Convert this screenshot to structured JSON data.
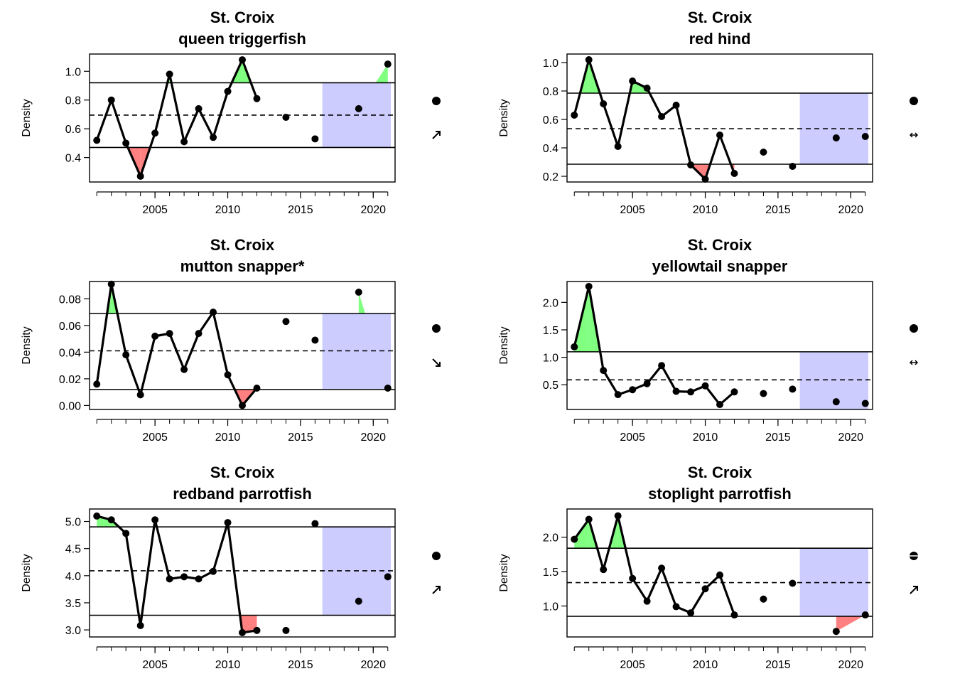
{
  "chart_data": [
    {
      "type": "line",
      "title": "St. Croix",
      "subtitle": "queen triggerfish",
      "ylabel": "Density",
      "xlabel": "",
      "xticks": [
        2005,
        2010,
        2015,
        2020
      ],
      "yticks": [
        0.4,
        0.6,
        0.8,
        1.0
      ],
      "ytick_labels": [
        "0.4",
        "0.6",
        "0.8",
        "1.0"
      ],
      "xlim": [
        2000.5,
        2021.5
      ],
      "ylim": [
        0.23,
        1.12
      ],
      "mean": 0.695,
      "upper": 0.92,
      "lower": 0.47,
      "shade_from": 2016.5,
      "series": [
        {
          "x": [
            2001,
            2002,
            2003,
            2004,
            2005,
            2006,
            2007,
            2008,
            2009,
            2010,
            2011,
            2012,
            2014,
            2016,
            2019,
            2021
          ],
          "values": [
            0.52,
            0.8,
            0.5,
            0.27,
            0.57,
            0.98,
            0.51,
            0.74,
            0.54,
            0.86,
            1.08,
            0.81,
            0.68,
            0.53,
            0.74,
            1.05
          ]
        }
      ],
      "trend": {
        "mean_symbol": "filled-circle",
        "direction": "up-right-arrow"
      }
    },
    {
      "type": "line",
      "title": "St. Croix",
      "subtitle": "red hind",
      "ylabel": "Density",
      "xlabel": "",
      "xticks": [
        2005,
        2010,
        2015,
        2020
      ],
      "yticks": [
        0.2,
        0.4,
        0.6,
        0.8,
        1.0
      ],
      "ytick_labels": [
        "0.2",
        "0.4",
        "0.6",
        "0.8",
        "1.0"
      ],
      "xlim": [
        2000.5,
        2021.5
      ],
      "ylim": [
        0.16,
        1.06
      ],
      "mean": 0.535,
      "upper": 0.785,
      "lower": 0.285,
      "shade_from": 2016.5,
      "series": [
        {
          "x": [
            2001,
            2002,
            2003,
            2004,
            2005,
            2006,
            2007,
            2008,
            2009,
            2010,
            2011,
            2012,
            2014,
            2016,
            2019,
            2021
          ],
          "values": [
            0.63,
            1.02,
            0.71,
            0.41,
            0.87,
            0.82,
            0.62,
            0.7,
            0.28,
            0.18,
            0.49,
            0.22,
            0.37,
            0.27,
            0.47,
            0.48
          ]
        }
      ],
      "trend": {
        "mean_symbol": "filled-circle",
        "direction": "left-right-arrow"
      }
    },
    {
      "type": "line",
      "title": "St. Croix",
      "subtitle": "mutton snapper*",
      "ylabel": "Density",
      "xlabel": "",
      "xticks": [
        2005,
        2010,
        2015,
        2020
      ],
      "yticks": [
        0.0,
        0.02,
        0.04,
        0.06,
        0.08
      ],
      "ytick_labels": [
        "0.00",
        "0.02",
        "0.04",
        "0.06",
        "0.08"
      ],
      "xlim": [
        2000.5,
        2021.5
      ],
      "ylim": [
        -0.003,
        0.093
      ],
      "mean": 0.041,
      "upper": 0.069,
      "lower": 0.012,
      "shade_from": 2016.5,
      "series": [
        {
          "x": [
            2001,
            2002,
            2003,
            2004,
            2005,
            2006,
            2007,
            2008,
            2009,
            2010,
            2011,
            2012,
            2014,
            2016,
            2019,
            2021
          ],
          "values": [
            0.016,
            0.091,
            0.038,
            0.008,
            0.052,
            0.054,
            0.027,
            0.054,
            0.07,
            0.023,
            0.0,
            0.013,
            0.063,
            0.049,
            0.085,
            0.013
          ]
        }
      ],
      "trend": {
        "mean_symbol": "filled-circle",
        "direction": "down-right-arrow"
      }
    },
    {
      "type": "line",
      "title": "St. Croix",
      "subtitle": "yellowtail snapper",
      "ylabel": "Density",
      "xlabel": "",
      "xticks": [
        2005,
        2010,
        2015,
        2020
      ],
      "yticks": [
        0.5,
        1.0,
        1.5,
        2.0
      ],
      "ytick_labels": [
        "0.5",
        "1.0",
        "1.5",
        "2.0"
      ],
      "xlim": [
        2000.5,
        2021.5
      ],
      "ylim": [
        0.05,
        2.38
      ],
      "mean": 0.59,
      "upper": 1.1,
      "lower": 0.0,
      "shade_from": 2016.5,
      "series": [
        {
          "x": [
            2001,
            2002,
            2003,
            2004,
            2005,
            2006,
            2007,
            2008,
            2009,
            2010,
            2011,
            2012,
            2014,
            2016,
            2019,
            2021
          ],
          "values": [
            1.19,
            2.29,
            0.76,
            0.32,
            0.41,
            0.52,
            0.85,
            0.38,
            0.37,
            0.48,
            0.14,
            0.37,
            0.34,
            0.42,
            0.19,
            0.16
          ]
        }
      ],
      "trend": {
        "mean_symbol": "filled-circle",
        "direction": "left-right-arrow"
      }
    },
    {
      "type": "line",
      "title": "St. Croix",
      "subtitle": "redband parrotfish",
      "ylabel": "Density",
      "xlabel": "",
      "xticks": [
        2005,
        2010,
        2015,
        2020
      ],
      "yticks": [
        3.0,
        3.5,
        4.0,
        4.5,
        5.0
      ],
      "ytick_labels": [
        "3.0",
        "3.5",
        "4.0",
        "4.5",
        "5.0"
      ],
      "xlim": [
        2000.5,
        2021.5
      ],
      "ylim": [
        2.87,
        5.23
      ],
      "mean": 4.09,
      "upper": 4.9,
      "lower": 3.27,
      "shade_from": 2016.5,
      "series": [
        {
          "x": [
            2001,
            2002,
            2003,
            2004,
            2005,
            2006,
            2007,
            2008,
            2009,
            2010,
            2011,
            2012,
            2014,
            2016,
            2019,
            2021
          ],
          "values": [
            5.1,
            5.03,
            4.78,
            3.08,
            5.03,
            3.94,
            3.98,
            3.94,
            4.08,
            4.98,
            2.95,
            2.99,
            2.99,
            4.96,
            3.53,
            3.98
          ]
        }
      ],
      "trend": {
        "mean_symbol": "filled-circle",
        "direction": "up-right-arrow"
      }
    },
    {
      "type": "line",
      "title": "St. Croix",
      "subtitle": "stoplight parrotfish",
      "ylabel": "Density",
      "xlabel": "",
      "xticks": [
        2005,
        2010,
        2015,
        2020
      ],
      "yticks": [
        1.0,
        1.5,
        2.0
      ],
      "ytick_labels": [
        "1.0",
        "1.5",
        "2.0"
      ],
      "xlim": [
        2000.5,
        2021.5
      ],
      "ylim": [
        0.55,
        2.41
      ],
      "mean": 1.34,
      "upper": 1.84,
      "lower": 0.85,
      "shade_from": 2016.5,
      "series": [
        {
          "x": [
            2001,
            2002,
            2003,
            2004,
            2005,
            2006,
            2007,
            2008,
            2009,
            2010,
            2011,
            2012,
            2014,
            2016,
            2019,
            2021
          ],
          "values": [
            1.97,
            2.26,
            1.53,
            2.31,
            1.4,
            1.07,
            1.55,
            0.99,
            0.9,
            1.25,
            1.45,
            0.87,
            1.1,
            1.33,
            0.63,
            0.87
          ]
        }
      ],
      "trend": {
        "mean_symbol": "circle-with-bar",
        "direction": "up-right-arrow"
      }
    }
  ],
  "colors": {
    "above_fill": "#80ff80",
    "below_fill": "#ff8080",
    "recent_shade": "#ccccff",
    "line": "#000000"
  }
}
